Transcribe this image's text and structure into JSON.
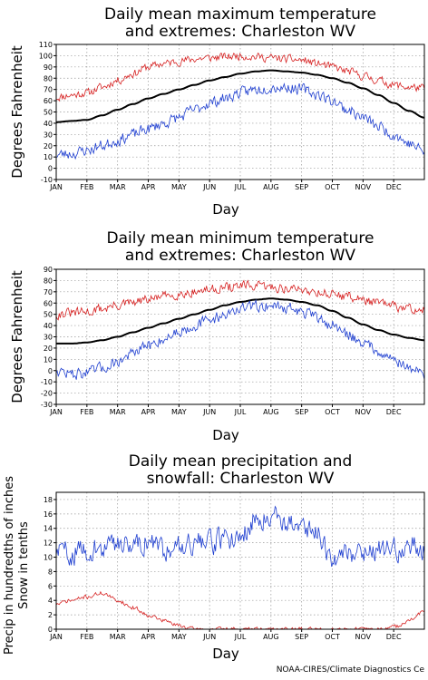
{
  "credit": "NOAA-CIRES/Climate Diagnostics Ce",
  "chart_data": [
    {
      "type": "line",
      "title_lines": [
        "Daily mean maximum temperature",
        "and extremes: Charleston WV"
      ],
      "xlabel": "Day",
      "ylabel": "Degrees Fahrenheit",
      "months": [
        "JAN",
        "FEB",
        "MAR",
        "APR",
        "MAY",
        "JUN",
        "JUL",
        "AUG",
        "SEP",
        "OCT",
        "NOV",
        "DEC"
      ],
      "ylim": [
        -10,
        110
      ],
      "yticks": [
        -10,
        0,
        10,
        20,
        30,
        40,
        50,
        60,
        70,
        80,
        90,
        100,
        110
      ],
      "grid": true,
      "series": [
        {
          "color": "#d62020",
          "width": 0.8,
          "noise": 5,
          "seed": 11,
          "values": [
            63,
            65,
            67,
            72,
            78,
            84,
            90,
            93,
            95,
            97,
            98,
            99,
            100,
            99,
            98,
            97,
            96,
            93,
            90,
            86,
            82,
            78,
            74,
            72,
            71
          ]
        },
        {
          "color": "#000000",
          "width": 2,
          "noise": 0,
          "seed": 1,
          "values": [
            41,
            42,
            43,
            47,
            52,
            57,
            62,
            66,
            70,
            74,
            78,
            81,
            84,
            86,
            87,
            86,
            85,
            83,
            80,
            76,
            71,
            65,
            58,
            51,
            45
          ]
        },
        {
          "color": "#1f3fd0",
          "width": 0.8,
          "noise": 7,
          "seed": 23,
          "values": [
            12,
            13,
            16,
            20,
            25,
            30,
            35,
            40,
            45,
            52,
            58,
            62,
            67,
            70,
            72,
            72,
            70,
            66,
            60,
            52,
            45,
            37,
            30,
            22,
            15
          ]
        }
      ]
    },
    {
      "type": "line",
      "title_lines": [
        "Daily mean minimum temperature",
        "and extremes: Charleston WV"
      ],
      "xlabel": "Day",
      "ylabel": "Degrees Fahrenheit",
      "months": [
        "JAN",
        "FEB",
        "MAR",
        "APR",
        "MAY",
        "JUN",
        "JUL",
        "AUG",
        "SEP",
        "OCT",
        "NOV",
        "DEC"
      ],
      "ylim": [
        -30,
        90
      ],
      "yticks": [
        -30,
        -20,
        -10,
        0,
        10,
        20,
        30,
        40,
        50,
        60,
        70,
        80,
        90
      ],
      "grid": true,
      "series": [
        {
          "color": "#d62020",
          "width": 0.8,
          "noise": 6,
          "seed": 31,
          "values": [
            50,
            51,
            52,
            55,
            58,
            60,
            63,
            66,
            68,
            70,
            72,
            74,
            75,
            75,
            74,
            73,
            72,
            70,
            68,
            66,
            63,
            60,
            57,
            55,
            54
          ]
        },
        {
          "color": "#000000",
          "width": 2,
          "noise": 0,
          "seed": 1,
          "values": [
            24,
            24,
            25,
            27,
            30,
            34,
            38,
            42,
            46,
            50,
            54,
            58,
            61,
            63,
            64,
            63,
            61,
            58,
            53,
            47,
            41,
            36,
            32,
            29,
            27
          ]
        },
        {
          "color": "#1f3fd0",
          "width": 0.8,
          "noise": 7,
          "seed": 47,
          "values": [
            0,
            -3,
            -2,
            2,
            8,
            15,
            22,
            28,
            35,
            40,
            45,
            50,
            55,
            57,
            58,
            56,
            52,
            47,
            40,
            32,
            25,
            18,
            10,
            2,
            -3
          ]
        }
      ]
    },
    {
      "type": "line",
      "title_lines": [
        "Daily mean precipitation and",
        "snowfall: Charleston WV"
      ],
      "xlabel": "Day",
      "ylabel_lines": [
        "Precip in hundredths of inches",
        "Snow in tenths"
      ],
      "months": [
        "JAN",
        "FEB",
        "MAR",
        "APR",
        "MAY",
        "JUN",
        "JUL",
        "AUG",
        "SEP",
        "OCT",
        "NOV",
        "DEC"
      ],
      "ylim": [
        0,
        19
      ],
      "yticks": [
        0,
        2,
        4,
        6,
        8,
        10,
        12,
        14,
        16,
        18
      ],
      "grid": true,
      "series": [
        {
          "color": "#1f3fd0",
          "width": 0.8,
          "noise": 2.2,
          "seed": 59,
          "values": [
            11,
            10.5,
            11,
            11,
            12,
            12,
            12,
            11,
            12,
            12,
            12,
            12.5,
            13,
            15,
            16,
            15,
            14,
            13.5,
            10,
            10.5,
            11,
            11,
            11,
            11.5,
            11
          ]
        },
        {
          "color": "#d62020",
          "width": 0.8,
          "noise": 0.4,
          "seed": 71,
          "values": [
            3.5,
            4,
            4.5,
            5,
            4,
            3,
            2,
            1.2,
            0.5,
            0,
            0,
            0,
            0,
            0,
            0,
            0,
            0,
            0,
            0,
            0,
            0,
            0,
            0.3,
            1.2,
            2.5
          ]
        }
      ]
    }
  ]
}
